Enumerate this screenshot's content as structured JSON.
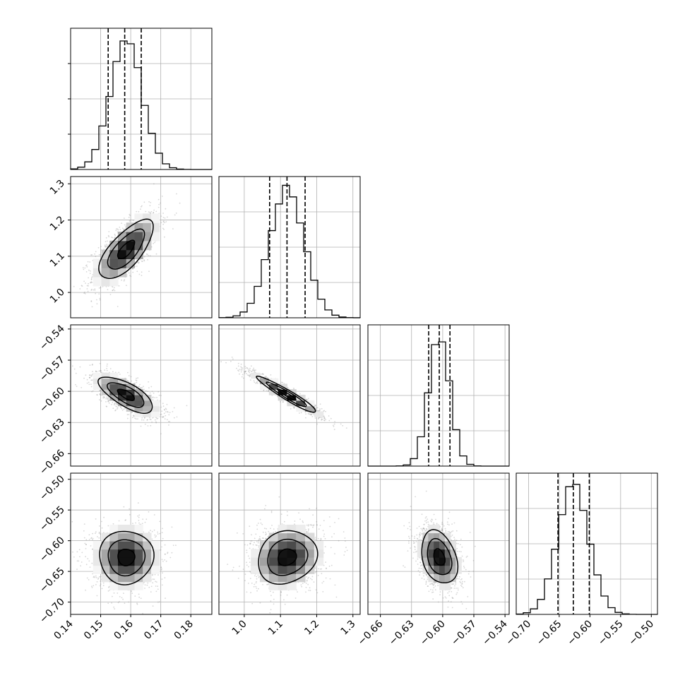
{
  "chart_data": {
    "type": "corner",
    "parameters": [
      {
        "range": [
          0.14,
          0.187
        ],
        "ticks": [
          0.14,
          0.15,
          0.16,
          0.17,
          0.18
        ],
        "tick_labels": [
          "0.14",
          "0.15",
          "0.16",
          "0.17",
          "0.18"
        ],
        "quantiles": [
          0.1525,
          0.158,
          0.1635
        ],
        "hist_mean": 0.1585,
        "hist_sd": 0.0053
      },
      {
        "range": [
          0.93,
          1.32
        ],
        "ticks": [
          1.0,
          1.1,
          1.2,
          1.3
        ],
        "tick_labels": [
          "1.0",
          "1.1",
          "1.2",
          "1.3"
        ],
        "quantiles": [
          1.07,
          1.118,
          1.168
        ],
        "hist_mean": 1.118,
        "hist_sd": 0.048
      },
      {
        "range": [
          -0.672,
          -0.536
        ],
        "ticks": [
          -0.66,
          -0.63,
          -0.6,
          -0.57,
          -0.54
        ],
        "tick_labels": [
          "−0.66",
          "−0.63",
          "−0.60",
          "−0.57",
          "−0.54"
        ],
        "quantiles": [
          -0.6135,
          -0.6033,
          -0.593
        ],
        "hist_mean": -0.6033,
        "hist_sd": 0.0102
      },
      {
        "range": [
          -0.72,
          -0.49
        ],
        "ticks": [
          -0.7,
          -0.65,
          -0.6,
          -0.55,
          -0.5
        ],
        "tick_labels": [
          "−0.70",
          "−0.65",
          "−0.60",
          "−0.55",
          "−0.50"
        ],
        "quantiles": [
          -0.652,
          -0.627,
          -0.601
        ],
        "hist_mean": -0.627,
        "hist_sd": 0.0255
      }
    ],
    "correlations": [
      [
        1.0,
        0.7,
        -0.7,
        0.0
      ],
      [
        0.7,
        1.0,
        -0.95,
        0.15
      ],
      [
        -0.7,
        -0.95,
        1.0,
        -0.3
      ],
      [
        0.0,
        0.15,
        -0.3,
        1.0
      ]
    ],
    "grid": true,
    "contours": true,
    "quantile_lines": "dashed"
  }
}
